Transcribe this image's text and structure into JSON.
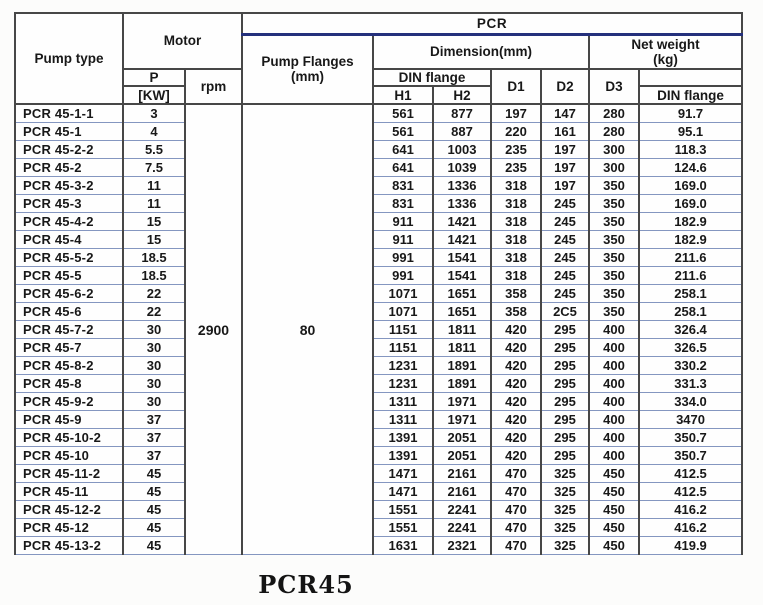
{
  "caption": "PCR45",
  "colors": {
    "pcr_underline": "#24307c",
    "row_separator": "#8496c0",
    "grid_line": "#474747"
  },
  "table": {
    "group_headers": {
      "pcr": "PCR",
      "pump_type": "Pump type",
      "motor": "Motor",
      "pump_flanges_line1": "Pump Flanges",
      "pump_flanges_line2": "(mm)",
      "dimension": "Dimension(mm)",
      "net_weight_line1": "Net weight",
      "net_weight_line2": "(kg)"
    },
    "sub_headers": {
      "p": "P",
      "p_unit": "[KW]",
      "rpm": "rpm",
      "din_flange": "DIN flange",
      "h1": "H1",
      "h2": "H2",
      "d1": "D1",
      "d2": "D2",
      "d3": "D3",
      "net_weight_din_flange": "DIN flange"
    },
    "merged": {
      "rpm": "2900",
      "pump_flanges": "80"
    },
    "rows": [
      {
        "pump_type": "PCR 45-1-1",
        "p_kw": "3",
        "h1": "561",
        "h2": "877",
        "d1": "197",
        "d2": "147",
        "d3": "280",
        "weight": "91.7"
      },
      {
        "pump_type": "PCR 45-1",
        "p_kw": "4",
        "h1": "561",
        "h2": "887",
        "d1": "220",
        "d2": "161",
        "d3": "280",
        "weight": "95.1"
      },
      {
        "pump_type": "PCR 45-2-2",
        "p_kw": "5.5",
        "h1": "641",
        "h2": "1003",
        "d1": "235",
        "d2": "197",
        "d3": "300",
        "weight": "118.3"
      },
      {
        "pump_type": "PCR 45-2",
        "p_kw": "7.5",
        "h1": "641",
        "h2": "1039",
        "d1": "235",
        "d2": "197",
        "d3": "300",
        "weight": "124.6"
      },
      {
        "pump_type": "PCR 45-3-2",
        "p_kw": "11",
        "h1": "831",
        "h2": "1336",
        "d1": "318",
        "d2": "197",
        "d3": "350",
        "weight": "169.0"
      },
      {
        "pump_type": "PCR 45-3",
        "p_kw": "11",
        "h1": "831",
        "h2": "1336",
        "d1": "318",
        "d2": "245",
        "d3": "350",
        "weight": "169.0"
      },
      {
        "pump_type": "PCR 45-4-2",
        "p_kw": "15",
        "h1": "911",
        "h2": "1421",
        "d1": "318",
        "d2": "245",
        "d3": "350",
        "weight": "182.9"
      },
      {
        "pump_type": "PCR 45-4",
        "p_kw": "15",
        "h1": "911",
        "h2": "1421",
        "d1": "318",
        "d2": "245",
        "d3": "350",
        "weight": "182.9"
      },
      {
        "pump_type": "PCR 45-5-2",
        "p_kw": "18.5",
        "h1": "991",
        "h2": "1541",
        "d1": "318",
        "d2": "245",
        "d3": "350",
        "weight": "211.6"
      },
      {
        "pump_type": "PCR 45-5",
        "p_kw": "18.5",
        "h1": "991",
        "h2": "1541",
        "d1": "318",
        "d2": "245",
        "d3": "350",
        "weight": "211.6"
      },
      {
        "pump_type": "PCR 45-6-2",
        "p_kw": "22",
        "h1": "1071",
        "h2": "1651",
        "d1": "358",
        "d2": "245",
        "d3": "350",
        "weight": "258.1"
      },
      {
        "pump_type": "PCR 45-6",
        "p_kw": "22",
        "h1": "1071",
        "h2": "1651",
        "d1": "358",
        "d2": "2C5",
        "d3": "350",
        "weight": "258.1"
      },
      {
        "pump_type": "PCR 45-7-2",
        "p_kw": "30",
        "h1": "1151",
        "h2": "1811",
        "d1": "420",
        "d2": "295",
        "d3": "400",
        "weight": "326.4"
      },
      {
        "pump_type": "PCR 45-7",
        "p_kw": "30",
        "h1": "1151",
        "h2": "1811",
        "d1": "420",
        "d2": "295",
        "d3": "400",
        "weight": "326.5"
      },
      {
        "pump_type": "PCR 45-8-2",
        "p_kw": "30",
        "h1": "1231",
        "h2": "1891",
        "d1": "420",
        "d2": "295",
        "d3": "400",
        "weight": "330.2"
      },
      {
        "pump_type": "PCR 45-8",
        "p_kw": "30",
        "h1": "1231",
        "h2": "1891",
        "d1": "420",
        "d2": "295",
        "d3": "400",
        "weight": "331.3"
      },
      {
        "pump_type": "PCR 45-9-2",
        "p_kw": "30",
        "h1": "1311",
        "h2": "1971",
        "d1": "420",
        "d2": "295",
        "d3": "400",
        "weight": "334.0"
      },
      {
        "pump_type": "PCR 45-9",
        "p_kw": "37",
        "h1": "1311",
        "h2": "1971",
        "d1": "420",
        "d2": "295",
        "d3": "400",
        "weight": "3470"
      },
      {
        "pump_type": "PCR 45-10-2",
        "p_kw": "37",
        "h1": "1391",
        "h2": "2051",
        "d1": "420",
        "d2": "295",
        "d3": "400",
        "weight": "350.7"
      },
      {
        "pump_type": "PCR 45-10",
        "p_kw": "37",
        "h1": "1391",
        "h2": "2051",
        "d1": "420",
        "d2": "295",
        "d3": "400",
        "weight": "350.7"
      },
      {
        "pump_type": "PCR 45-11-2",
        "p_kw": "45",
        "h1": "1471",
        "h2": "2161",
        "d1": "470",
        "d2": "325",
        "d3": "450",
        "weight": "412.5"
      },
      {
        "pump_type": "PCR 45-11",
        "p_kw": "45",
        "h1": "1471",
        "h2": "2161",
        "d1": "470",
        "d2": "325",
        "d3": "450",
        "weight": "412.5"
      },
      {
        "pump_type": "PCR 45-12-2",
        "p_kw": "45",
        "h1": "1551",
        "h2": "2241",
        "d1": "470",
        "d2": "325",
        "d3": "450",
        "weight": "416.2"
      },
      {
        "pump_type": "PCR 45-12",
        "p_kw": "45",
        "h1": "1551",
        "h2": "2241",
        "d1": "470",
        "d2": "325",
        "d3": "450",
        "weight": "416.2"
      },
      {
        "pump_type": "PCR 45-13-2",
        "p_kw": "45",
        "h1": "1631",
        "h2": "2321",
        "d1": "470",
        "d2": "325",
        "d3": "450",
        "weight": "419.9"
      }
    ]
  }
}
